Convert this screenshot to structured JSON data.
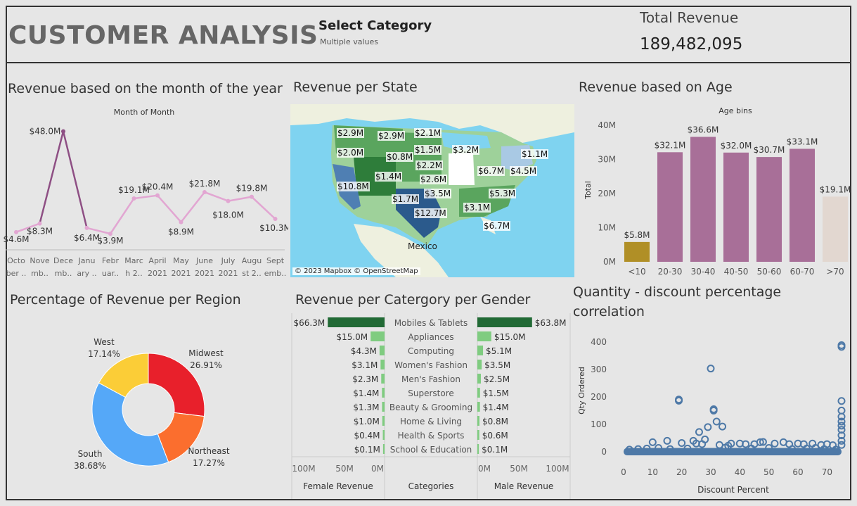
{
  "header": {
    "title": "CUSTOMER ANALYSIS",
    "select_title": "Select Category",
    "select_value": "Multiple values",
    "total_label": "Total Revenue",
    "total_value": "189,482,095"
  },
  "panels": {
    "month_title": "Revenue based on the month of the year",
    "state_title": "Revenue per State",
    "age_title": "Revenue based on Age",
    "region_title": "Percentage of Revenue per Region",
    "gender_title": "Revenue per Catergory per Gender",
    "qty_title_line1": "Quantity - discount percentage",
    "qty_title_line2": "correlation"
  },
  "map": {
    "attribution": "© 2023 Mapbox © OpenStreetMap",
    "country_label": "Mexico",
    "state_labels": [
      "$2.9M",
      "$2.9M",
      "$2.1M",
      "$2.0M",
      "$1.5M",
      "$0.8M",
      "$3.2M",
      "$2.2M",
      "$1.4M",
      "$2.6M",
      "$10.8M",
      "$6.7M",
      "$4.5M",
      "$1.1M",
      "$3.5M",
      "$1.7M",
      "$5.3M",
      "$12.7M",
      "$3.1M",
      "$6.7M"
    ],
    "colors": {
      "water": "#7fd3f0",
      "land": "#eef0df",
      "dark_green": "#2e7d3a",
      "mid_green": "#5aa55e",
      "light_green": "#9ed19a",
      "blue_dark": "#2b5a8c",
      "blue_mid": "#4f7fb3",
      "blue_light": "#a9c9e4",
      "white": "#ffffff"
    }
  },
  "chart_data": [
    {
      "type": "line",
      "title": "Month of Month",
      "categories": [
        "October 2020",
        "November 2020",
        "December 2020",
        "January 2021",
        "February 2021",
        "March 2021",
        "April 2021",
        "May 2021",
        "June 2021",
        "July 2021",
        "August 2021",
        "September 2021"
      ],
      "tick_lines1": [
        "Octo",
        "Nove",
        "Dece",
        "Janu",
        "Febr",
        "Marc",
        "April",
        "May",
        "June",
        "July",
        "Augu",
        "Sept"
      ],
      "tick_lines2": [
        "ber ..",
        "mb..",
        "mb..",
        "ary ..",
        "uar..",
        "h 2..",
        "2021",
        "2021",
        "2021",
        "2021",
        "st 2..",
        "emb.."
      ],
      "values": [
        4.6,
        8.3,
        48.0,
        6.4,
        3.9,
        19.1,
        20.4,
        8.9,
        21.8,
        18.0,
        19.8,
        10.3
      ],
      "labels": [
        "$4.6M",
        "$8.3M",
        "$48.0M",
        "$6.4M",
        "$3.9M",
        "$19.1M",
        "$20.4M",
        "$8.9M",
        "$21.8M",
        "$18.0M",
        "$19.8M",
        "$10.3M"
      ],
      "ylim": [
        0,
        50
      ]
    },
    {
      "type": "bar",
      "title": "Age bins",
      "ylabel": "Total",
      "categories": [
        "<10",
        "20-30",
        "30-40",
        "40-50",
        "50-60",
        "60-70",
        ">70"
      ],
      "values": [
        5.8,
        32.1,
        36.6,
        32.0,
        30.7,
        33.1,
        19.1
      ],
      "labels": [
        "$5.8M",
        "$32.1M",
        "$36.6M",
        "$32.0M",
        "$30.7M",
        "$33.1M",
        "$19.1M"
      ],
      "colors": [
        "#b08f26",
        "#a86f98",
        "#a86f98",
        "#a86f98",
        "#a86f98",
        "#a86f98",
        "#e2d7d0"
      ],
      "yticks": [
        0,
        10,
        20,
        30,
        40
      ],
      "ytick_labels": [
        "0M",
        "10M",
        "20M",
        "30M",
        "40M"
      ],
      "ylim": [
        0,
        40
      ]
    },
    {
      "type": "pie",
      "slices": [
        {
          "label": "Midwest",
          "pct": "26.91%",
          "value": 26.91,
          "color": "#e8202b"
        },
        {
          "label": "Northeast",
          "pct": "17.27%",
          "value": 17.27,
          "color": "#fb6e2e"
        },
        {
          "label": "South",
          "pct": "38.68%",
          "value": 38.68,
          "color": "#55a8f8"
        },
        {
          "label": "West",
          "pct": "17.14%",
          "value": 17.14,
          "color": "#fbcd37"
        }
      ]
    },
    {
      "type": "bar",
      "categories": [
        "Mobiles & Tablets",
        "Appliances",
        "Computing",
        "Women's Fashion",
        "Men's Fashion",
        "Superstore",
        "Beauty & Grooming",
        "Home & Living",
        "Health & Sports",
        "School & Education"
      ],
      "series": [
        {
          "name": "Female Revenue",
          "values": [
            66.3,
            15.0,
            4.3,
            3.1,
            2.3,
            1.4,
            1.3,
            1.0,
            0.4,
            0.1
          ],
          "labels": [
            "$66.3M",
            "$15.0M",
            "$4.3M",
            "$3.1M",
            "$2.3M",
            "$1.4M",
            "$1.3M",
            "$1.0M",
            "$0.4M",
            "$0.1M"
          ]
        },
        {
          "name": "Male Revenue",
          "values": [
            63.8,
            15.0,
            5.1,
            3.5,
            2.5,
            1.5,
            1.4,
            0.8,
            0.6,
            0.1
          ],
          "labels": [
            "$63.8M",
            "$15.0M",
            "$5.1M",
            "$3.5M",
            "$2.5M",
            "$1.5M",
            "$1.4M",
            "$0.8M",
            "$0.6M",
            "$0.1M"
          ]
        }
      ],
      "female_axis": [
        "100M",
        "50M",
        "0M"
      ],
      "male_axis": [
        "0M",
        "50M",
        "100M"
      ],
      "col_titles": [
        "Female Revenue",
        "Categories",
        "Male Revenue"
      ],
      "colors": {
        "dark": "#216a35",
        "light": "#7fcc80"
      },
      "xlim": [
        0,
        100
      ]
    },
    {
      "type": "scatter",
      "xlabel": "Discount Percent",
      "ylabel": "Qty Ordered",
      "xticks": [
        0,
        10,
        20,
        30,
        40,
        50,
        60,
        70
      ],
      "yticks": [
        0,
        100,
        200,
        300,
        400
      ],
      "xlim": [
        0,
        75
      ],
      "ylim": [
        0,
        420
      ],
      "points": [
        [
          75,
          388
        ],
        [
          75,
          382
        ],
        [
          75,
          185
        ],
        [
          75,
          150
        ],
        [
          75,
          128
        ],
        [
          75,
          110
        ],
        [
          75,
          95
        ],
        [
          75,
          80
        ],
        [
          75,
          60
        ],
        [
          75,
          40
        ],
        [
          75,
          25
        ],
        [
          30,
          303
        ],
        [
          19,
          190
        ],
        [
          19,
          186
        ],
        [
          31,
          155
        ],
        [
          31,
          150
        ],
        [
          32,
          110
        ],
        [
          29,
          90
        ],
        [
          34,
          92
        ],
        [
          26,
          72
        ],
        [
          28,
          45
        ],
        [
          24,
          40
        ],
        [
          36,
          22
        ],
        [
          15,
          40
        ],
        [
          10,
          35
        ],
        [
          20,
          32
        ],
        [
          25,
          30
        ],
        [
          27,
          28
        ],
        [
          33,
          25
        ],
        [
          37,
          30
        ],
        [
          40,
          30
        ],
        [
          42,
          28
        ],
        [
          45,
          28
        ],
        [
          47,
          35
        ],
        [
          48,
          36
        ],
        [
          52,
          30
        ],
        [
          55,
          35
        ],
        [
          57,
          28
        ],
        [
          60,
          30
        ],
        [
          62,
          28
        ],
        [
          65,
          30
        ],
        [
          68,
          25
        ],
        [
          70,
          28
        ],
        [
          72,
          24
        ],
        [
          2,
          8
        ],
        [
          5,
          10
        ],
        [
          8,
          12
        ],
        [
          12,
          14
        ],
        [
          16,
          10
        ],
        [
          22,
          12
        ],
        [
          35,
          15
        ],
        [
          44,
          12
        ],
        [
          50,
          14
        ],
        [
          58,
          10
        ],
        [
          63,
          12
        ],
        [
          66,
          14
        ],
        [
          69,
          10
        ],
        [
          73,
          8
        ]
      ],
      "color": "#4e79a7"
    }
  ]
}
